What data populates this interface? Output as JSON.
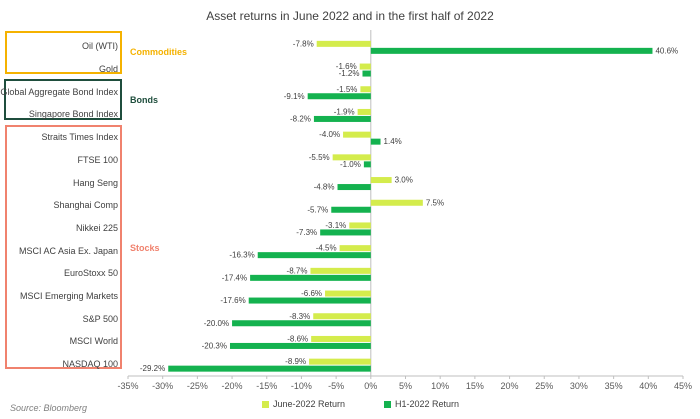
{
  "chart_data": {
    "type": "bar",
    "orientation": "horizontal",
    "title": "Asset returns in June 2022 and in the first half of 2022",
    "categories": [
      "Oil (WTI)",
      "Gold",
      "Global Aggregate Bond Index",
      "Singapore Bond Index",
      "Straits Times Index",
      "FTSE 100",
      "Hang Seng",
      "Shanghai Comp",
      "Nikkei 225",
      "MSCI AC Asia Ex. Japan",
      "EuroStoxx 50",
      "MSCI Emerging Markets",
      "S&P 500",
      "MSCI World",
      "NASDAQ 100"
    ],
    "series": [
      {
        "name": "June-2022 Return",
        "color": "#d4ec4c",
        "values": [
          -7.8,
          -1.6,
          -1.5,
          -1.9,
          -4.0,
          -5.5,
          3.0,
          7.5,
          -3.1,
          -4.5,
          -8.7,
          -6.6,
          -8.3,
          -8.6,
          -8.9
        ]
      },
      {
        "name": "H1-2022 Return",
        "color": "#14b24f",
        "values": [
          40.6,
          -1.2,
          -9.1,
          -8.2,
          1.4,
          -1.0,
          -4.8,
          -5.7,
          -7.3,
          -16.3,
          -17.4,
          -17.6,
          -20.0,
          -20.3,
          -29.2
        ]
      }
    ],
    "value_labels": {
      "June-2022 Return": [
        "-7.8%",
        "-1.6%",
        "-1.5%",
        "-1.9%",
        "-4.0%",
        "-5.5%",
        "3.0%",
        "7.5%",
        "-3.1%",
        "-4.5%",
        "-8.7%",
        "-6.6%",
        "-8.3%",
        "-8.6%",
        "-8.9%"
      ],
      "H1-2022 Return": [
        "40.6%",
        "-1.2%",
        "-9.1%",
        "-8.2%",
        "1.4%",
        "-1.0%",
        "-4.8%",
        "-5.7%",
        "-7.3%",
        "-16.3%",
        "-17.4%",
        "-17.6%",
        "-20.0%",
        "-20.3%",
        "-29.2%"
      ]
    },
    "xlim": [
      -35,
      45
    ],
    "xticks": [
      -35,
      -30,
      -25,
      -20,
      -15,
      -10,
      -5,
      0,
      5,
      10,
      15,
      20,
      25,
      30,
      35,
      40,
      45
    ],
    "xtick_labels": [
      "-35%",
      "-30%",
      "-25%",
      "-20%",
      "-15%",
      "-10%",
      "-5%",
      "0%",
      "5%",
      "10%",
      "15%",
      "20%",
      "25%",
      "30%",
      "35%",
      "40%",
      "45%"
    ],
    "grid": false,
    "legend_position": "bottom",
    "groups": [
      {
        "name": "Commodities",
        "color": "#f5b200",
        "categories": [
          "Oil (WTI)",
          "Gold"
        ]
      },
      {
        "name": "Bonds",
        "color": "#1f4e3d",
        "categories": [
          "Global Aggregate Bond Index",
          "Singapore Bond Index"
        ]
      },
      {
        "name": "Stocks",
        "color": "#f0826e",
        "categories": [
          "Straits Times Index",
          "FTSE 100",
          "Hang Seng",
          "Shanghai Comp",
          "Nikkei 225",
          "MSCI AC Asia Ex. Japan",
          "EuroStoxx 50",
          "MSCI Emerging Markets",
          "S&P 500",
          "MSCI World",
          "NASDAQ 100"
        ]
      }
    ],
    "source": "Source: Bloomberg"
  }
}
